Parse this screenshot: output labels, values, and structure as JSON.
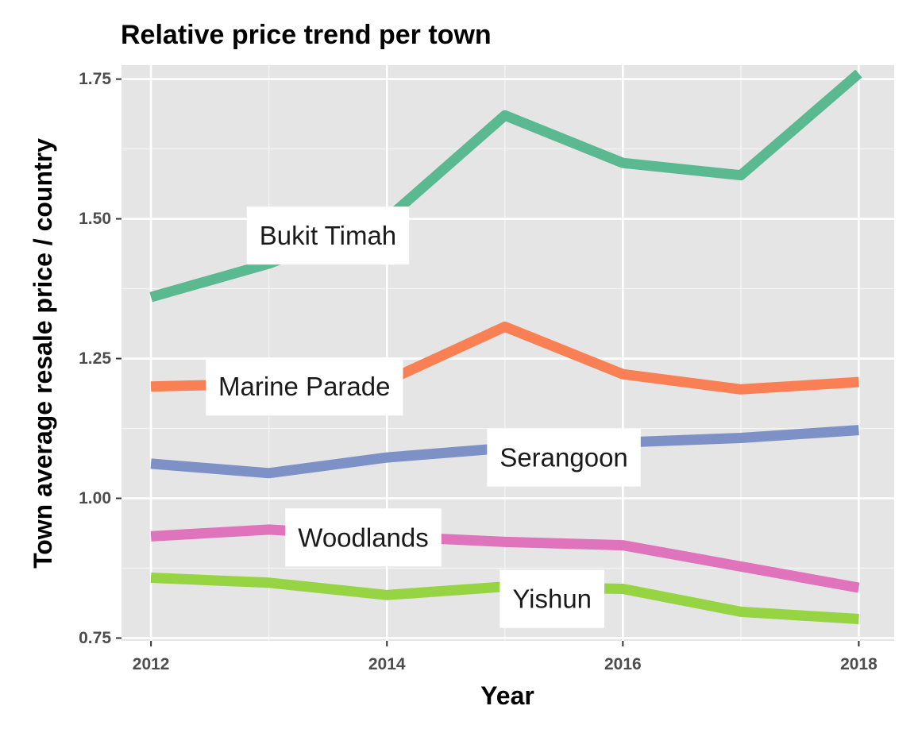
{
  "chart_data": {
    "type": "line",
    "title": "Relative price trend per town",
    "xlabel": "Year",
    "ylabel": "Town average resale price / country",
    "xlim": [
      2011.75,
      2018.3
    ],
    "ylim": [
      0.745,
      1.775
    ],
    "x_ticks": [
      2012,
      2014,
      2016,
      2018
    ],
    "x_tick_labels": [
      "2012",
      "2014",
      "2016",
      "2018"
    ],
    "y_ticks": [
      0.75,
      1.0,
      1.25,
      1.5,
      1.75
    ],
    "y_tick_labels": [
      "0.75",
      "1.00",
      "1.25",
      "1.50",
      "1.75"
    ],
    "grid": true,
    "legend": "none",
    "background": "#e5e5e5",
    "x": [
      2012,
      2013,
      2014,
      2015,
      2016,
      2017,
      2018
    ],
    "series": [
      {
        "name": "Bukit Timah",
        "color": "#5ab990",
        "values": [
          1.36,
          1.42,
          1.5,
          1.685,
          1.6,
          1.578,
          1.76
        ],
        "label_at": 2013.5,
        "label_y": 1.47
      },
      {
        "name": "Marine Parade",
        "color": "#f98054",
        "values": [
          1.2,
          1.205,
          1.21,
          1.307,
          1.222,
          1.195,
          1.208
        ],
        "label_at": 2013.3,
        "label_y": 1.2
      },
      {
        "name": "Serangoon",
        "color": "#7e91c7",
        "values": [
          1.062,
          1.045,
          1.073,
          1.09,
          1.1,
          1.108,
          1.122
        ],
        "label_at": 2015.5,
        "label_y": 1.073
      },
      {
        "name": "Woodlands",
        "color": "#df73bc",
        "values": [
          0.932,
          0.944,
          0.932,
          0.922,
          0.916,
          0.878,
          0.84
        ],
        "label_at": 2013.8,
        "label_y": 0.93
      },
      {
        "name": "Yishun",
        "color": "#96d444",
        "values": [
          0.858,
          0.849,
          0.827,
          0.842,
          0.838,
          0.797,
          0.784
        ],
        "label_at": 2015.4,
        "label_y": 0.82
      }
    ]
  }
}
